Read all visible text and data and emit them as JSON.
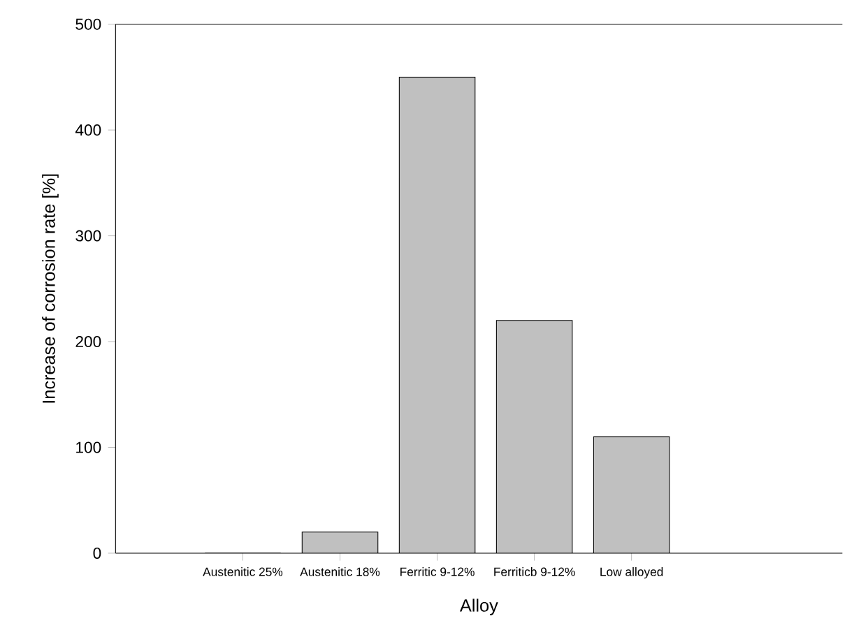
{
  "chart_data": {
    "type": "bar",
    "xlabel": "Alloy",
    "ylabel": "Increase of corrosion rate [%]",
    "categories": [
      "Austenitic 25%",
      "Austenitic 18%",
      "Ferritic 9-12%",
      "Ferriticb 9-12%",
      "Low alloyed"
    ],
    "values": [
      0,
      20,
      450,
      220,
      110
    ],
    "color": "#c0c0c0",
    "ylim": [
      0,
      500
    ],
    "yticks": [
      0,
      100,
      200,
      300,
      400,
      500
    ]
  }
}
